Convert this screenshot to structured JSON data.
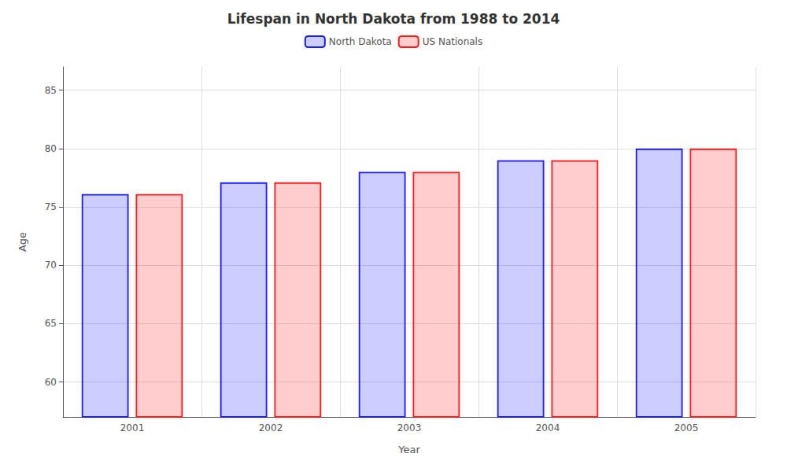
{
  "chart_data": {
    "type": "bar",
    "title": "Lifespan in North Dakota from 1988 to 2014",
    "x_label": "Year",
    "y_label": "Age",
    "categories": [
      "2001",
      "2002",
      "2003",
      "2004",
      "2005"
    ],
    "series": [
      {
        "name": "North Dakota",
        "color": "#1a1aff",
        "values": [
          76.1,
          77.1,
          78.0,
          79.0,
          80.0
        ]
      },
      {
        "name": "US Nationals",
        "color": "#ff1a1a",
        "values": [
          76.1,
          77.1,
          78.0,
          79.0,
          80.0
        ]
      }
    ],
    "ylim": [
      57,
      87
    ],
    "yticks": [
      60,
      65,
      70,
      75,
      80,
      85
    ],
    "grid": true,
    "legend": "top"
  }
}
